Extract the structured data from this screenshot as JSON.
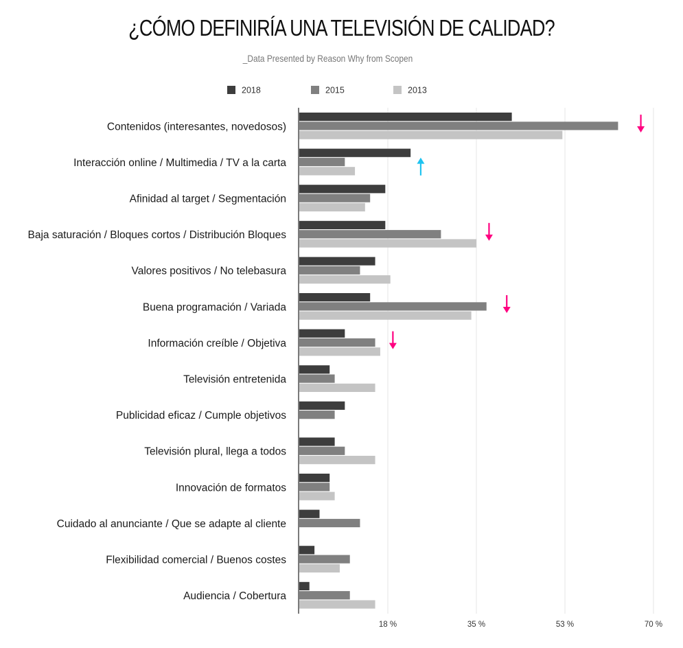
{
  "chart_data": {
    "type": "bar",
    "orientation": "horizontal",
    "title": "¿CÓMO DEFINIRÍA UNA TELEVISIÓN DE CALIDAD?",
    "subtitle": "_Data Presented by Reason Why from Scopen",
    "xlim": [
      0,
      70
    ],
    "ticks": [
      {
        "value": 17.5,
        "label": "18 %"
      },
      {
        "value": 35,
        "label": "35 %"
      },
      {
        "value": 52.5,
        "label": "53 %"
      },
      {
        "value": 70,
        "label": "70 %"
      }
    ],
    "grid": true,
    "legend": "top",
    "categories": [
      "Contenidos (interesantes, novedosos)",
      "Interacción online / Multimedia / TV a la carta",
      "Afinidad al target / Segmentación",
      "Baja saturación / Bloques cortos / Distribución Bloques",
      "Valores positivos / No telebasura",
      "Buena programación / Variada",
      "Información creíble / Objetiva",
      "Televisión entretenida",
      "Publicidad eficaz / Cumple objetivos",
      "Televisión plural, llega a todos",
      "Innovación de formatos",
      "Cuidado al anunciante / Que se adapte al cliente",
      "Flexibilidad comercial / Buenos costes",
      "Audiencia / Cobertura"
    ],
    "series": [
      {
        "name": "2018",
        "color": "#3d3d3d",
        "values": [
          42,
          22,
          17,
          17,
          15,
          14,
          9,
          6,
          9,
          7,
          6,
          4,
          3,
          2
        ]
      },
      {
        "name": "2015",
        "color": "#808080",
        "values": [
          63,
          9,
          14,
          28,
          12,
          37,
          15,
          7,
          7,
          9,
          6,
          12,
          10,
          10
        ]
      },
      {
        "name": "2013",
        "color": "#c4c4c4",
        "values": [
          52,
          11,
          13,
          35,
          18,
          34,
          16,
          15,
          null,
          15,
          7,
          null,
          8,
          15
        ]
      }
    ],
    "annotations": [
      {
        "category": "Contenidos (interesantes, novedosos)",
        "direction": "down",
        "color": "#ff0080",
        "value": 67.5
      },
      {
        "category": "Interacción online / Multimedia / TV a la carta",
        "direction": "up",
        "color": "#1ec3f0",
        "value": 24
      },
      {
        "category": "Baja saturación / Bloques cortos / Distribución Bloques",
        "direction": "down",
        "color": "#ff0080",
        "value": 37.5
      },
      {
        "category": "Buena programación / Variada",
        "direction": "down",
        "color": "#ff0080",
        "value": 41
      },
      {
        "category": "Información creíble / Objetiva",
        "direction": "down",
        "color": "#ff0080",
        "value": 18.5
      }
    ]
  }
}
